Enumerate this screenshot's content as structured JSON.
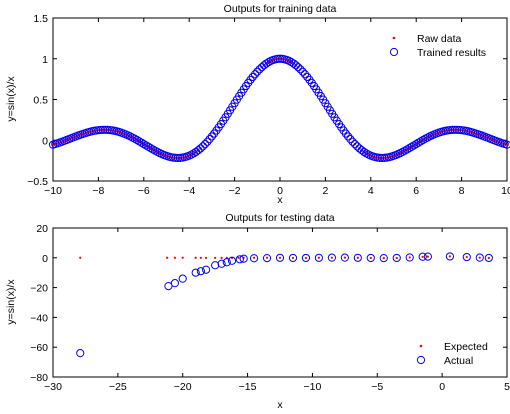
{
  "chart_data": [
    {
      "type": "scatter",
      "title": "Outputs for training data",
      "xlabel": "x",
      "ylabel": "y=sin(x)/x",
      "xlim": [
        -10,
        10
      ],
      "ylim": [
        -0.5,
        1.5
      ],
      "xticks": [
        "−10",
        "−8",
        "−6",
        "−4",
        "−2",
        "0",
        "2",
        "4",
        "6",
        "8",
        "10"
      ],
      "yticks": [
        "−0.5",
        "0",
        "0.5",
        "1",
        "1.5"
      ],
      "legend_position": "top-right",
      "series": [
        {
          "name": "Raw data",
          "marker": "point",
          "color": "#ff0000",
          "function": "sin(x)/x",
          "x_start": -10,
          "x_end": 10,
          "count": 201
        },
        {
          "name": "Trained results",
          "marker": "circle",
          "color": "#0000ff",
          "function": "sin(x)/x",
          "x_start": -10,
          "x_end": 10,
          "count": 201
        }
      ]
    },
    {
      "type": "scatter",
      "title": "Outputs for testing data",
      "xlabel": "x",
      "ylabel": "y=sin(x)/x",
      "xlim": [
        -30,
        5
      ],
      "ylim": [
        -80,
        20
      ],
      "xticks": [
        "−30",
        "−25",
        "−20",
        "−15",
        "−10",
        "−5",
        "0",
        "5"
      ],
      "yticks": [
        "−80",
        "−60",
        "−40",
        "−20",
        "0",
        "20"
      ],
      "legend_position": "bottom-right",
      "series": [
        {
          "name": "Expected",
          "marker": "point",
          "color": "#ff0000",
          "x": [
            -27.9,
            -21.2,
            -20.6,
            -20.0,
            -19.0,
            -18.6,
            -18.2,
            -17.5,
            -17.0,
            -16.6,
            -16.2,
            -15.7,
            -15.3,
            -14.5,
            -13.5,
            -12.5,
            -11.5,
            -10.5,
            -9.5,
            -8.5,
            -7.5,
            -6.5,
            -5.5,
            -4.5,
            -3.5,
            -2.5,
            -1.5,
            -1.1,
            0.6,
            1.9,
            2.9,
            3.6
          ],
          "y": [
            0.01,
            0.04,
            0.05,
            0.05,
            0.01,
            -0.02,
            -0.03,
            -0.06,
            -0.06,
            -0.04,
            -0.03,
            0.0,
            0.03,
            0.06,
            0.06,
            -0.01,
            -0.08,
            -0.09,
            0.01,
            0.09,
            0.13,
            0.03,
            -0.13,
            -0.22,
            -0.1,
            0.24,
            0.66,
            0.81,
            0.94,
            0.5,
            0.08,
            -0.12
          ]
        },
        {
          "name": "Actual",
          "marker": "circle",
          "color": "#0000ff",
          "x": [
            -27.9,
            -21.1,
            -20.6,
            -20.0,
            -19.0,
            -18.6,
            -18.2,
            -17.5,
            -17.0,
            -16.6,
            -16.2,
            -15.6,
            -15.3,
            -14.5,
            -13.5,
            -12.5,
            -11.5,
            -10.5,
            -9.5,
            -8.5,
            -7.5,
            -6.5,
            -5.5,
            -4.5,
            -3.5,
            -2.5,
            -1.5,
            -1.1,
            0.6,
            1.9,
            2.9,
            3.6
          ],
          "y": [
            -64,
            -19,
            -17,
            -14,
            -10,
            -9,
            -8,
            -5,
            -4,
            -3,
            -2,
            -1,
            -0.6,
            -0.3,
            -0.2,
            0.0,
            -0.1,
            -0.1,
            0.0,
            0.1,
            0.1,
            0.0,
            -0.1,
            -0.2,
            -0.1,
            0.2,
            0.7,
            0.8,
            0.9,
            0.5,
            0.1,
            -0.1
          ]
        }
      ]
    }
  ]
}
